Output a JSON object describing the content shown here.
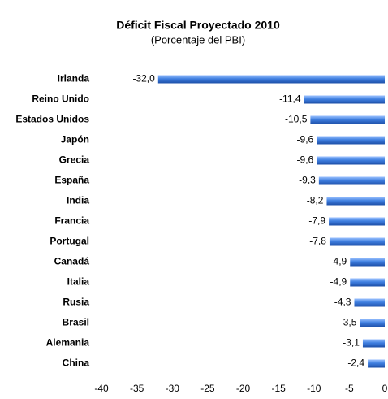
{
  "chart_data": {
    "type": "bar",
    "orientation": "horizontal",
    "title": "Déficit Fiscal Proyectado 2010",
    "subtitle": "(Porcentaje del PBI)",
    "categories": [
      "Irlanda",
      "Reino Unido",
      "Estados Unidos",
      "Japón",
      "Grecia",
      "España",
      "India",
      "Francia",
      "Portugal",
      "Canadá",
      "Italia",
      "Rusia",
      "Brasil",
      "Alemania",
      "China"
    ],
    "values": [
      -32.0,
      -11.4,
      -10.5,
      -9.6,
      -9.6,
      -9.3,
      -8.2,
      -7.9,
      -7.8,
      -4.9,
      -4.9,
      -4.3,
      -3.5,
      -3.1,
      -2.4
    ],
    "value_labels": [
      "-32,0",
      "-11,4",
      "-10,5",
      "-9,6",
      "-9,6",
      "-9,3",
      "-8,2",
      "-7,9",
      "-7,8",
      "-4,9",
      "-4,9",
      "-4,3",
      "-3,5",
      "-3,1",
      "-2,4"
    ],
    "color": "#3f7fe0",
    "xlim": [
      -40,
      0
    ],
    "xticks": [
      -40,
      -35,
      -30,
      -25,
      -20,
      -15,
      -10,
      -5,
      0
    ],
    "grid": false
  }
}
